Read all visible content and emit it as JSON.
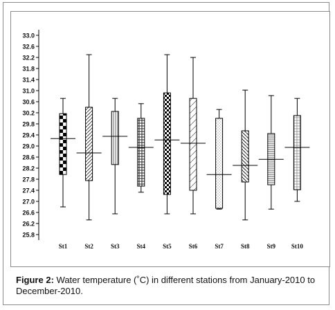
{
  "chart_data": {
    "type": "boxplot",
    "yticks": [
      "33.0",
      "32.6",
      "32.2",
      "31.8",
      "31.4",
      "31.0",
      "30.6",
      "30.2",
      "29.8",
      "29.4",
      "29.0",
      "28.6",
      "28.2",
      "27.8",
      "27.4",
      "27.0",
      "26.6",
      "26.2",
      "25.8"
    ],
    "ylim": [
      25.6,
      33.2
    ],
    "categories": [
      "St1",
      "St2",
      "St3",
      "St4",
      "St5",
      "St6",
      "St7",
      "St8",
      "St9",
      "St10"
    ],
    "boxes": [
      {
        "label": "St1",
        "min": 26.8,
        "q1": 27.97,
        "median": 29.27,
        "q3": 30.17,
        "max": 30.72,
        "pattern": "checker"
      },
      {
        "label": "St2",
        "min": 26.33,
        "q1": 27.75,
        "median": 28.75,
        "q3": 30.4,
        "max": 32.3,
        "pattern": "diagonal-dense"
      },
      {
        "label": "St3",
        "min": 26.55,
        "q1": 28.33,
        "median": 29.35,
        "q3": 30.25,
        "max": 30.72,
        "pattern": "vertical"
      },
      {
        "label": "St4",
        "min": 27.33,
        "q1": 27.55,
        "median": 28.95,
        "q3": 30.0,
        "max": 30.53,
        "pattern": "grid"
      },
      {
        "label": "St5",
        "min": 26.55,
        "q1": 27.25,
        "median": 29.22,
        "q3": 30.92,
        "max": 32.3,
        "pattern": "checker-small"
      },
      {
        "label": "St6",
        "min": 26.55,
        "q1": 27.4,
        "median": 29.1,
        "q3": 30.72,
        "max": 32.2,
        "pattern": "diagonal-sparse"
      },
      {
        "label": "St7",
        "min": 26.72,
        "q1": 26.75,
        "median": 27.97,
        "q3": 30.0,
        "max": 30.32,
        "pattern": "dots"
      },
      {
        "label": "St8",
        "min": 26.33,
        "q1": 27.7,
        "median": 28.3,
        "q3": 29.55,
        "max": 31.02,
        "pattern": "diagonal-back"
      },
      {
        "label": "St9",
        "min": 26.72,
        "q1": 27.6,
        "median": 28.52,
        "q3": 29.45,
        "max": 30.82,
        "pattern": "horizontal"
      },
      {
        "label": "St10",
        "min": 27.0,
        "q1": 27.42,
        "median": 28.95,
        "q3": 30.1,
        "max": 30.72,
        "pattern": "grid-fine"
      }
    ]
  },
  "caption": {
    "label": "Figure 2:",
    "text": "Water temperature (˚C) in different stations from January-2010 to December-2010."
  }
}
